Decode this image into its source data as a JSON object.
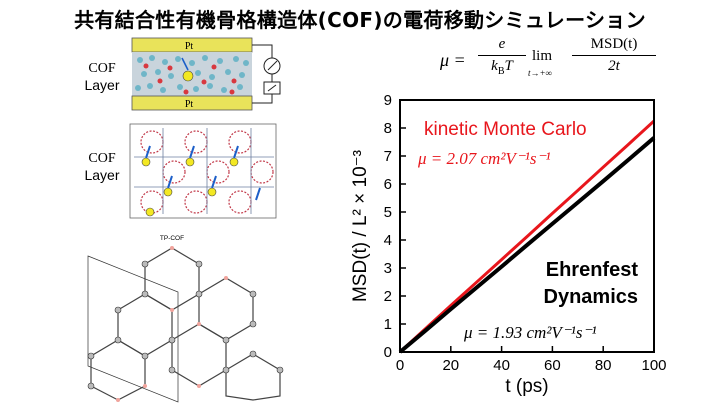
{
  "title": "共有結合性有機骨格構造体(COF)の電荷移動シミュレーション",
  "formula": {
    "lhs": "μ =",
    "numerator": "e",
    "denominator": "k",
    "denominator_sub": "B",
    "denominator_tail": "T",
    "lim": "lim",
    "lim_sub": "t→+∞",
    "msd_num": "MSD(t)",
    "msd_den": "2t"
  },
  "device": {
    "label_line1": "COF",
    "label_line2": "Layer",
    "electrode_top": "Pt",
    "electrode_bottom": "Pt"
  },
  "lattice": {
    "label_line1": "COF",
    "label_line2": "Layer"
  },
  "molecule": {
    "label": "TP-COF"
  },
  "chart_data": {
    "type": "line",
    "xlabel": "t (ps)",
    "ylabel": "MSD(t) / L² × 10⁻³",
    "xlim": [
      0,
      100
    ],
    "ylim": [
      0,
      9
    ],
    "xticks": [
      0,
      20,
      40,
      60,
      80,
      100
    ],
    "yticks": [
      0,
      1,
      2,
      3,
      4,
      5,
      6,
      7,
      8,
      9
    ],
    "grid": false,
    "series": [
      {
        "name": "kinetic Monte Carlo",
        "color": "#e8161c",
        "x": [
          0,
          10,
          20,
          30,
          40,
          50,
          60,
          70,
          80,
          90,
          100
        ],
        "y": [
          0,
          0.83,
          1.66,
          2.48,
          3.3,
          4.12,
          4.95,
          5.77,
          6.6,
          7.42,
          8.25
        ]
      },
      {
        "name": "Ehrenfest Dynamics",
        "color": "#000000",
        "x": [
          0,
          10,
          20,
          30,
          40,
          50,
          60,
          70,
          80,
          90,
          100
        ],
        "y": [
          0,
          0.76,
          1.53,
          2.29,
          3.05,
          3.82,
          4.58,
          5.34,
          6.1,
          6.87,
          7.65
        ]
      }
    ],
    "annotations": [
      {
        "text": "μ = 2.07 cm²V⁻¹s⁻¹",
        "color": "#e8161c"
      },
      {
        "text": "μ = 1.93 cm²V⁻¹s⁻¹",
        "color": "#000000"
      }
    ]
  }
}
